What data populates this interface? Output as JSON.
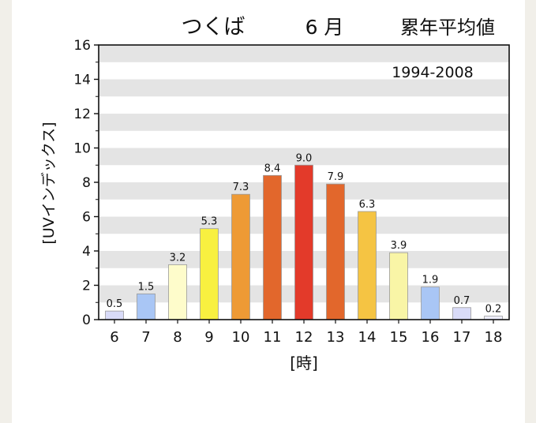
{
  "chart_data": {
    "type": "bar",
    "title_location": "つくば",
    "title_month": "6 月",
    "title_stat": "累年平均値",
    "period": "1994-2008",
    "xlabel": "[時]",
    "ylabel": "[UVインデックス]",
    "ylim": [
      0,
      16
    ],
    "yticks": [
      "0",
      "2",
      "4",
      "6",
      "8",
      "10",
      "12",
      "14",
      "16"
    ],
    "grid": "horizontal bands",
    "categories": [
      "6",
      "7",
      "8",
      "9",
      "10",
      "11",
      "12",
      "13",
      "14",
      "15",
      "16",
      "17",
      "18"
    ],
    "values": [
      0.5,
      1.5,
      3.2,
      5.3,
      7.3,
      8.4,
      9.0,
      7.9,
      6.3,
      3.9,
      1.9,
      0.7,
      0.2
    ],
    "value_labels": [
      "0.5",
      "1.5",
      "3.2",
      "5.3",
      "7.3",
      "8.4",
      "9.0",
      "7.9",
      "6.3",
      "3.9",
      "1.9",
      "0.7",
      "0.2"
    ],
    "colors": [
      "#d9dbf8",
      "#a9c6f5",
      "#fefccb",
      "#f8f040",
      "#ee9a35",
      "#e2672c",
      "#e33a2a",
      "#e2672c",
      "#f5c443",
      "#f9f5a6",
      "#a9c6f5",
      "#d9dbf8",
      "#eeeeff"
    ]
  }
}
